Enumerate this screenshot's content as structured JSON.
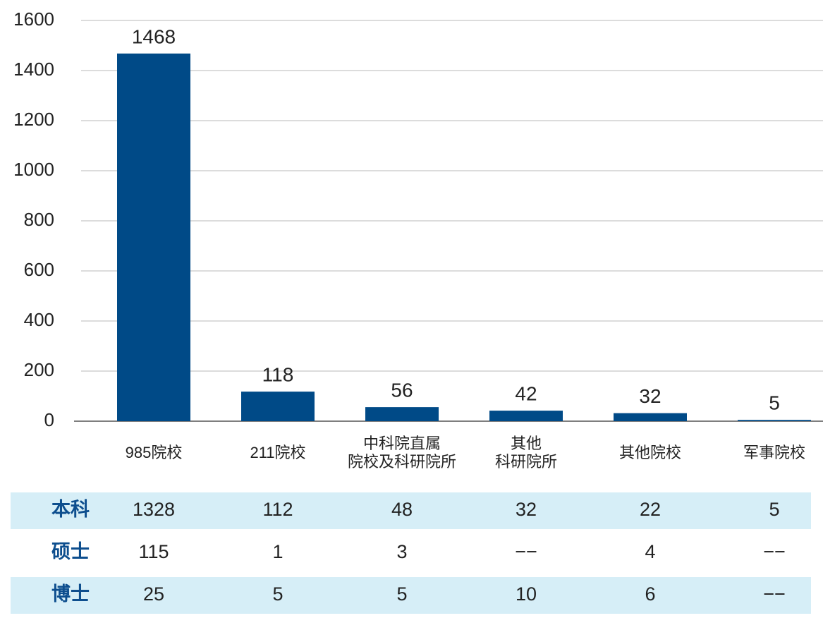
{
  "chart_data": {
    "type": "bar",
    "categories": [
      [
        "985院校"
      ],
      [
        "211院校"
      ],
      [
        "中科院直属",
        "院校及科研院所"
      ],
      [
        "其他",
        "科研院所"
      ],
      [
        "其他院校"
      ],
      [
        "军事院校"
      ]
    ],
    "values": [
      1468,
      118,
      56,
      42,
      32,
      5
    ],
    "color": "#004a87",
    "ylim": [
      0,
      1600
    ],
    "yticks": [
      0,
      200,
      400,
      600,
      800,
      1000,
      1200,
      1400,
      1600
    ],
    "grid": true
  },
  "table": {
    "row_color": "#d6eef7",
    "label_color": "#0d4e8e",
    "rows": [
      {
        "label": "本科",
        "values": [
          1328,
          112,
          48,
          32,
          22,
          5
        ]
      },
      {
        "label": "硕士",
        "values": [
          115,
          1,
          3,
          "−−",
          4,
          "−−"
        ]
      },
      {
        "label": "博士",
        "values": [
          25,
          5,
          5,
          10,
          6,
          "−−"
        ]
      }
    ]
  }
}
